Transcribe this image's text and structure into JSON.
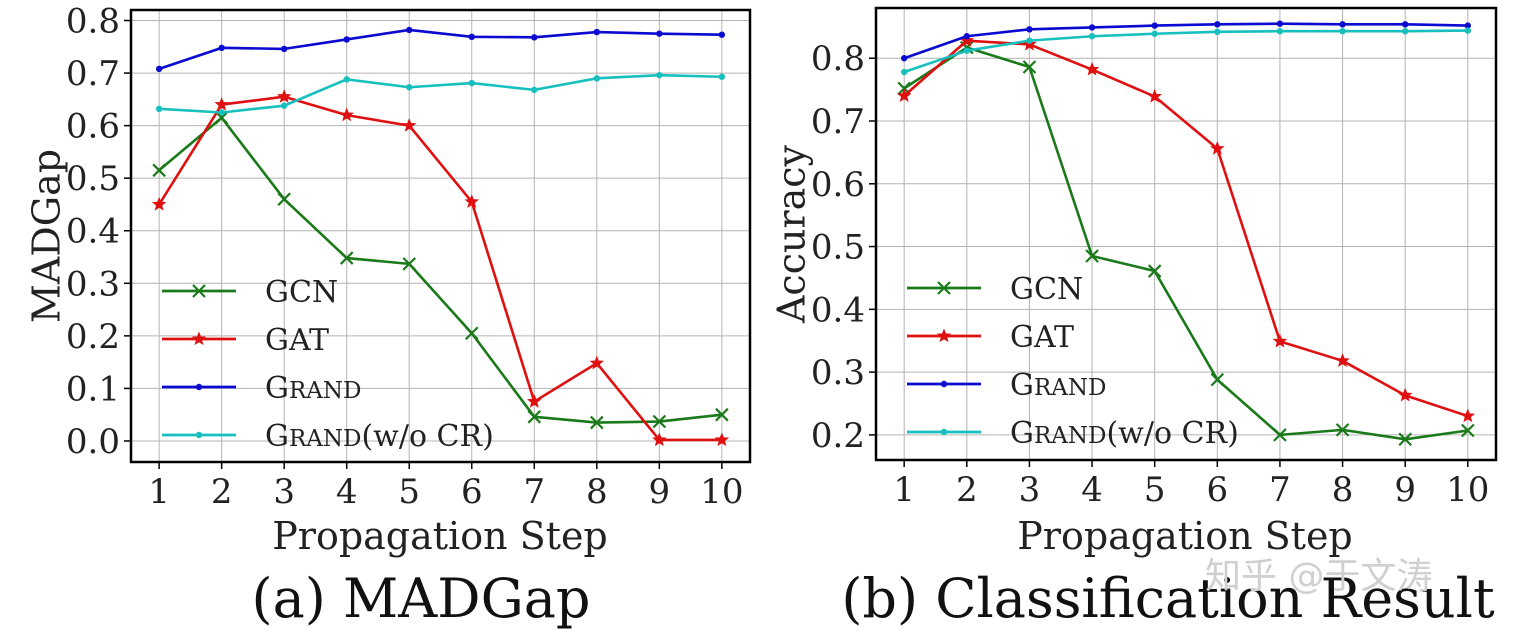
{
  "chart_data": [
    {
      "type": "line",
      "caption": "(a) MADGap",
      "xlabel": "Propagation Step",
      "ylabel": "MADGap",
      "x": [
        1,
        2,
        3,
        4,
        5,
        6,
        7,
        8,
        9,
        10
      ],
      "xlim": [
        0.55,
        10.45
      ],
      "ylim": [
        -0.04,
        0.82
      ],
      "yticks": [
        0.0,
        0.1,
        0.2,
        0.3,
        0.4,
        0.5,
        0.6,
        0.7,
        0.8
      ],
      "ytick_labels": [
        "0.0",
        "0.1",
        "0.2",
        "0.3",
        "0.4",
        "0.5",
        "0.6",
        "0.7",
        "0.8"
      ],
      "xtick_labels": [
        "1",
        "2",
        "3",
        "4",
        "5",
        "6",
        "7",
        "8",
        "9",
        "10"
      ],
      "grid": true,
      "legend_position": "lower-left",
      "series": [
        {
          "name": "GCN",
          "color": "#1a7a1a",
          "marker": "x",
          "values": [
            0.515,
            0.615,
            0.46,
            0.348,
            0.337,
            0.205,
            0.046,
            0.035,
            0.037,
            0.05
          ]
        },
        {
          "name": "GAT",
          "color": "#e01010",
          "marker": "star",
          "values": [
            0.45,
            0.64,
            0.655,
            0.62,
            0.6,
            0.455,
            0.075,
            0.148,
            0.002,
            0.002
          ]
        },
        {
          "name": "Grand",
          "color": "#0a0ad0",
          "marker": "dot",
          "values": [
            0.708,
            0.748,
            0.746,
            0.764,
            0.782,
            0.769,
            0.768,
            0.778,
            0.775,
            0.773
          ]
        },
        {
          "name": "Grand(w/o CR)",
          "color": "#17bfbf",
          "marker": "dot",
          "values": [
            0.632,
            0.625,
            0.638,
            0.688,
            0.673,
            0.681,
            0.668,
            0.69,
            0.696,
            0.693
          ]
        }
      ]
    },
    {
      "type": "line",
      "caption": "(b) Classification Result",
      "xlabel": "Propagation Step",
      "ylabel": "Accuracy",
      "x": [
        1,
        2,
        3,
        4,
        5,
        6,
        7,
        8,
        9,
        10
      ],
      "xlim": [
        0.55,
        10.45
      ],
      "ylim": [
        0.16,
        0.88
      ],
      "yticks": [
        0.2,
        0.3,
        0.4,
        0.5,
        0.6,
        0.7,
        0.8
      ],
      "ytick_labels": [
        "0.2",
        "0.3",
        "0.4",
        "0.5",
        "0.6",
        "0.7",
        "0.8"
      ],
      "xtick_labels": [
        "1",
        "2",
        "3",
        "4",
        "5",
        "6",
        "7",
        "8",
        "9",
        "10"
      ],
      "grid": true,
      "legend_position": "lower-left",
      "series": [
        {
          "name": "GCN",
          "color": "#1a7a1a",
          "marker": "x",
          "values": [
            0.752,
            0.817,
            0.786,
            0.485,
            0.461,
            0.288,
            0.2,
            0.208,
            0.193,
            0.207
          ]
        },
        {
          "name": "GAT",
          "color": "#e01010",
          "marker": "star",
          "values": [
            0.74,
            0.828,
            0.822,
            0.782,
            0.739,
            0.656,
            0.349,
            0.318,
            0.263,
            0.23
          ]
        },
        {
          "name": "Grand",
          "color": "#0a0ad0",
          "marker": "dot",
          "values": [
            0.8,
            0.835,
            0.846,
            0.849,
            0.852,
            0.854,
            0.855,
            0.854,
            0.854,
            0.852
          ]
        },
        {
          "name": "Grand(w/o CR)",
          "color": "#17bfbf",
          "marker": "dot",
          "values": [
            0.778,
            0.812,
            0.828,
            0.835,
            0.839,
            0.842,
            0.843,
            0.843,
            0.843,
            0.844
          ]
        }
      ]
    }
  ],
  "watermark": "知乎 @于文涛"
}
